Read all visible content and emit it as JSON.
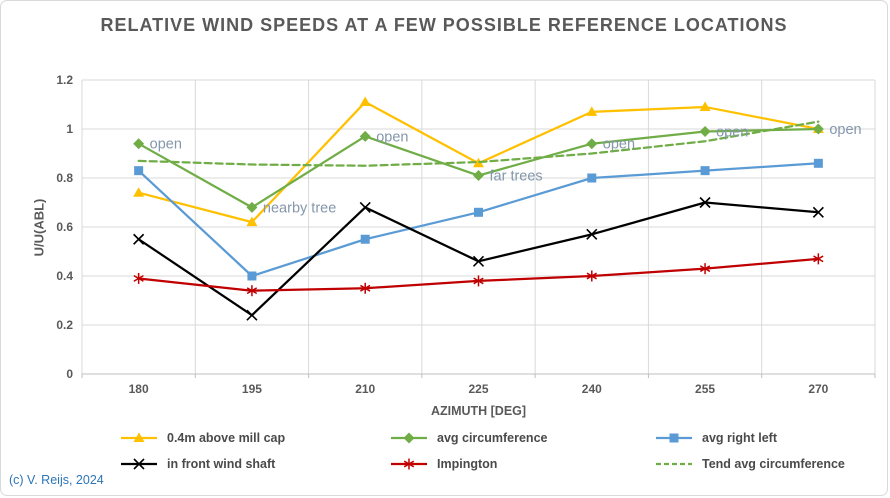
{
  "window": {
    "background": "#FFFFFF",
    "border_color": "#D9D9D9"
  },
  "chart_data": {
    "type": "line",
    "title": "RELATIVE WIND SPEEDS AT A FEW POSSIBLE REFERENCE LOCATIONS",
    "xlabel": "AZIMUTH [DEG]",
    "ylabel": "U/U(ABL)",
    "categories": [
      180,
      195,
      210,
      225,
      240,
      255,
      270
    ],
    "x_ticks": [
      "180",
      "195",
      "210",
      "225",
      "240",
      "255",
      "270"
    ],
    "y_ticks": [
      "0",
      "0.2",
      "0.4",
      "0.6",
      "0.8",
      "1",
      "1.2"
    ],
    "y_tick_values": [
      0,
      0.2,
      0.4,
      0.6,
      0.8,
      1,
      1.2
    ],
    "ylim": [
      0,
      1.2
    ],
    "grid": true,
    "legend_position": "bottom",
    "series": [
      {
        "name": "0.4m above mill cap",
        "color": "#FFC000",
        "marker": "triangle",
        "dash": "solid",
        "values": [
          0.74,
          0.62,
          1.11,
          0.86,
          1.07,
          1.09,
          1.0
        ]
      },
      {
        "name": "avg circumference",
        "color": "#70AD47",
        "marker": "diamond",
        "dash": "solid",
        "values": [
          0.94,
          0.68,
          0.97,
          0.81,
          0.94,
          0.99,
          1.0
        ]
      },
      {
        "name": "avg right left",
        "color": "#5B9BD5",
        "marker": "square",
        "dash": "solid",
        "values": [
          0.83,
          0.4,
          0.55,
          0.66,
          0.8,
          0.83,
          0.86
        ]
      },
      {
        "name": "in front wind shaft",
        "color": "#000000",
        "marker": "x",
        "dash": "solid",
        "values": [
          0.55,
          0.24,
          0.68,
          0.46,
          0.57,
          0.7,
          0.66
        ]
      },
      {
        "name": "Impington",
        "color": "#C00000",
        "marker": "asterisk",
        "dash": "solid",
        "values": [
          0.39,
          0.34,
          0.35,
          0.38,
          0.4,
          0.43,
          0.47
        ]
      },
      {
        "name": "Tend avg circumference",
        "color": "#70AD47",
        "marker": "none",
        "dash": "dashed",
        "values": [
          0.87,
          0.855,
          0.85,
          0.865,
          0.9,
          0.95,
          1.03
        ]
      }
    ],
    "annotations": [
      {
        "series": "avg circumference",
        "x": 180,
        "text": "open"
      },
      {
        "series": "avg circumference",
        "x": 195,
        "text": "nearby tree"
      },
      {
        "series": "avg circumference",
        "x": 210,
        "text": "open"
      },
      {
        "series": "avg circumference",
        "x": 225,
        "text": "far trees"
      },
      {
        "series": "avg circumference",
        "x": 240,
        "text": "open"
      },
      {
        "series": "avg circumference",
        "x": 255,
        "text": "open"
      },
      {
        "series": "avg circumference",
        "x": 270,
        "text": "open"
      }
    ],
    "annotation_color": "#8497AB",
    "text_color": "#595959",
    "legend_text_color": "#4A4A4A",
    "gridline_color": "#D9D9D9",
    "axis_line_color": "#BFBFBF"
  },
  "footer": {
    "copyright": "(c) V. Reijs, 2024",
    "color": "#2E75B6"
  }
}
